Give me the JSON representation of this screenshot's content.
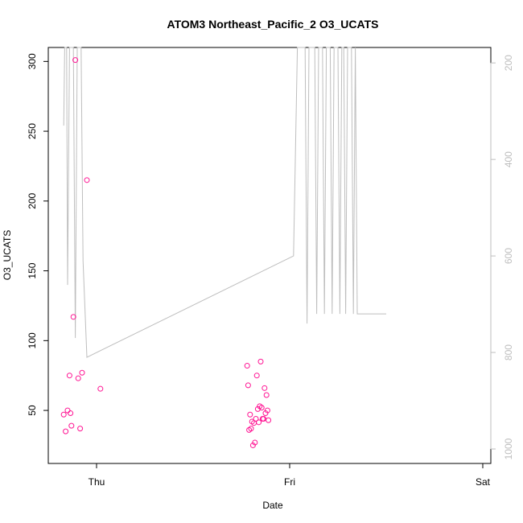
{
  "chart_data": {
    "type": "scatter",
    "title": "ATOM3 Northeast_Pacific_2 O3_UCATS",
    "xlabel": "Date",
    "ylabel": "O3_UCATS",
    "x_ticks": [
      "Thu",
      "Fri",
      "Sat"
    ],
    "y_ticks": [
      50,
      100,
      150,
      200,
      250,
      300
    ],
    "ylim": [
      12,
      310
    ],
    "y2_ticks": [
      200,
      400,
      600,
      800,
      1000
    ],
    "y2lim": [
      1030,
      168
    ],
    "y2_reversed": true,
    "colors": {
      "points": "#ff1493",
      "line": "#bebebe",
      "axis": "#000000",
      "axis2": "#bebebe"
    },
    "series": [
      {
        "type": "points",
        "points": [
          [
            -0.17,
            47
          ],
          [
            -0.16,
            35
          ],
          [
            -0.15,
            50
          ],
          [
            -0.14,
            75
          ],
          [
            -0.135,
            48
          ],
          [
            -0.13,
            39
          ],
          [
            -0.12,
            117
          ],
          [
            -0.11,
            301
          ],
          [
            -0.095,
            73
          ],
          [
            -0.085,
            37
          ],
          [
            -0.075,
            77
          ],
          [
            -0.05,
            215
          ],
          [
            0.02,
            65.5
          ],
          [
            0.78,
            82
          ],
          [
            0.785,
            68
          ],
          [
            0.79,
            36
          ],
          [
            0.795,
            47
          ],
          [
            0.8,
            37
          ],
          [
            0.805,
            42
          ],
          [
            0.81,
            25
          ],
          [
            0.815,
            41
          ],
          [
            0.82,
            27
          ],
          [
            0.825,
            44
          ],
          [
            0.83,
            75
          ],
          [
            0.835,
            51
          ],
          [
            0.84,
            41.5
          ],
          [
            0.845,
            53
          ],
          [
            0.85,
            85
          ],
          [
            0.855,
            52
          ],
          [
            0.86,
            44
          ],
          [
            0.865,
            44
          ],
          [
            0.87,
            66
          ],
          [
            0.875,
            48
          ],
          [
            0.88,
            61
          ],
          [
            0.885,
            50
          ],
          [
            0.89,
            43
          ]
        ]
      },
      {
        "type": "line",
        "axis": "right",
        "points": [
          [
            -0.17,
            330
          ],
          [
            -0.165,
            100
          ],
          [
            -0.16,
            100
          ],
          [
            -0.155,
            100
          ],
          [
            -0.15,
            660
          ],
          [
            -0.14,
            100
          ],
          [
            -0.13,
            100
          ],
          [
            -0.12,
            100
          ],
          [
            -0.11,
            770
          ],
          [
            -0.1,
            100
          ],
          [
            -0.09,
            100
          ],
          [
            -0.08,
            100
          ],
          [
            -0.07,
            610
          ],
          [
            -0.05,
            810
          ],
          [
            1.02,
            600
          ],
          [
            1.04,
            100
          ],
          [
            1.06,
            100
          ],
          [
            1.07,
            100
          ],
          [
            1.08,
            100
          ],
          [
            1.09,
            740
          ],
          [
            1.1,
            100
          ],
          [
            1.11,
            100
          ],
          [
            1.12,
            100
          ],
          [
            1.13,
            100
          ],
          [
            1.14,
            720
          ],
          [
            1.15,
            100
          ],
          [
            1.16,
            100
          ],
          [
            1.17,
            100
          ],
          [
            1.18,
            720
          ],
          [
            1.19,
            100
          ],
          [
            1.2,
            100
          ],
          [
            1.21,
            100
          ],
          [
            1.22,
            720
          ],
          [
            1.23,
            100
          ],
          [
            1.24,
            100
          ],
          [
            1.25,
            100
          ],
          [
            1.26,
            720
          ],
          [
            1.27,
            100
          ],
          [
            1.28,
            100
          ],
          [
            1.29,
            720
          ],
          [
            1.3,
            100
          ],
          [
            1.31,
            100
          ],
          [
            1.32,
            100
          ],
          [
            1.33,
            720
          ],
          [
            1.34,
            100
          ],
          [
            1.35,
            720
          ],
          [
            1.36,
            720
          ],
          [
            1.37,
            720
          ],
          [
            1.38,
            720
          ],
          [
            1.39,
            720
          ],
          [
            1.4,
            720
          ],
          [
            1.41,
            720
          ],
          [
            1.42,
            720
          ],
          [
            1.43,
            720
          ],
          [
            1.44,
            720
          ],
          [
            1.45,
            720
          ],
          [
            1.46,
            720
          ],
          [
            1.47,
            720
          ],
          [
            1.48,
            720
          ],
          [
            1.49,
            720
          ],
          [
            1.5,
            720
          ]
        ]
      }
    ]
  }
}
